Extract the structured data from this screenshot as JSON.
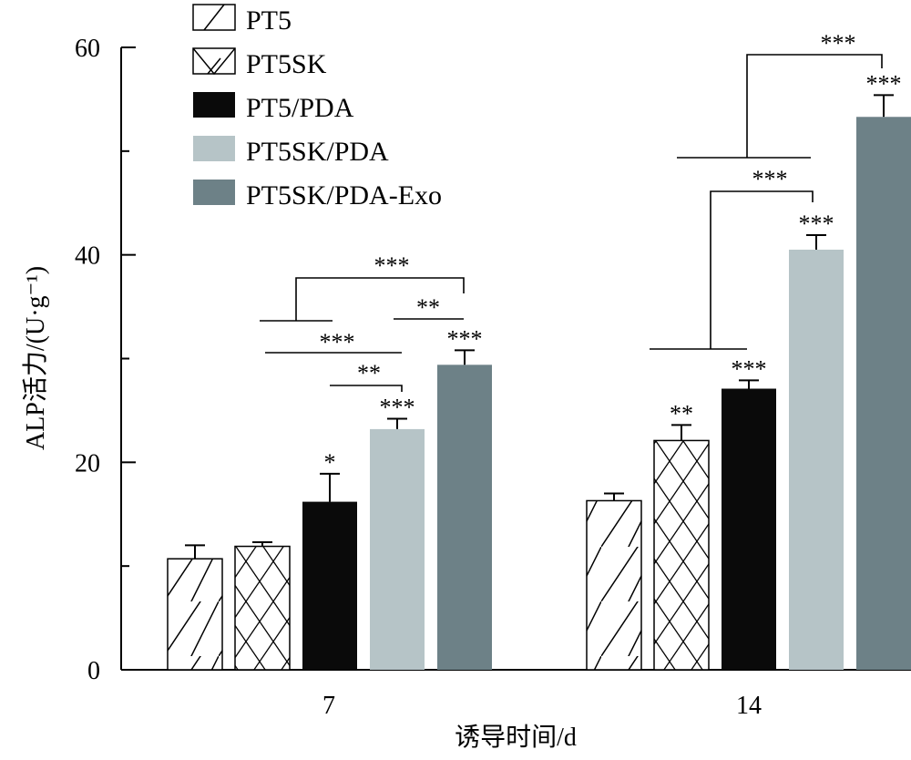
{
  "chart_data": {
    "type": "bar",
    "xlabel": "诱导时间/d",
    "ylabel": "ALP活力/(U·g⁻¹)",
    "ylim": [
      0,
      60
    ],
    "yticks": [
      0,
      20,
      40,
      60
    ],
    "ytick_labels": [
      "0",
      "20",
      "40",
      "60"
    ],
    "categories": [
      "7",
      "14"
    ],
    "legend_position": "top-center",
    "series": [
      {
        "name": "PT5",
        "fill": "hatch-diagonal",
        "color": "#ffffff",
        "values": [
          10.7,
          16.3
        ],
        "errors": [
          1.3,
          0.7
        ],
        "sig": [
          "",
          ""
        ]
      },
      {
        "name": "PT5SK",
        "fill": "hatch-cross",
        "color": "#ffffff",
        "values": [
          11.9,
          22.1
        ],
        "errors": [
          0.4,
          1.5
        ],
        "sig": [
          "",
          "**"
        ]
      },
      {
        "name": "PT5/PDA",
        "fill": "solid",
        "color": "#0a0a0a",
        "values": [
          16.2,
          27.1
        ],
        "errors": [
          2.7,
          0.8
        ],
        "sig": [
          "*",
          "***"
        ]
      },
      {
        "name": "PT5SK/PDA",
        "fill": "solid",
        "color": "#b6c4c7",
        "values": [
          23.2,
          40.5
        ],
        "errors": [
          1.0,
          1.4
        ],
        "sig": [
          "***",
          "***"
        ]
      },
      {
        "name": "PT5SK/PDA-Exo",
        "fill": "solid",
        "color": "#6d8187",
        "values": [
          29.4,
          53.3
        ],
        "errors": [
          1.4,
          2.1
        ],
        "sig": [
          "***",
          "***"
        ]
      }
    ],
    "comparisons": [
      {
        "category": "7",
        "label": "***"
      },
      {
        "category": "7",
        "label": "**"
      },
      {
        "category": "7",
        "label": "***"
      },
      {
        "category": "7",
        "label": "**"
      },
      {
        "category": "14",
        "label": "***"
      },
      {
        "category": "14",
        "label": "***"
      }
    ]
  }
}
